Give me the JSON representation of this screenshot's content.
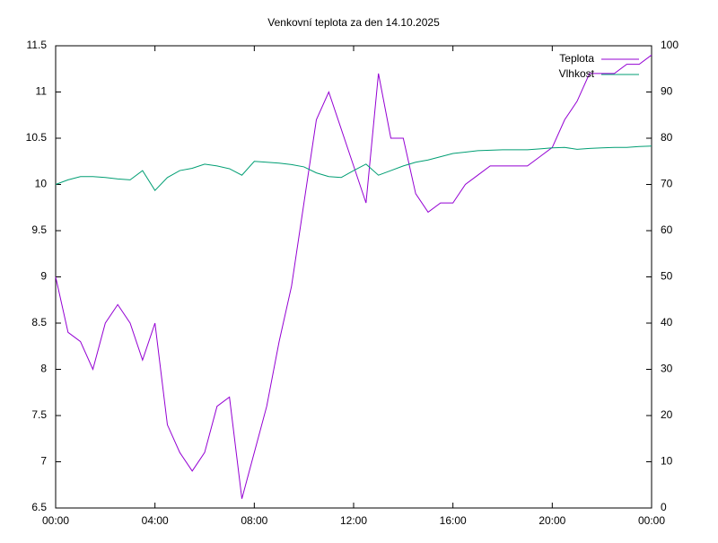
{
  "chart_data": {
    "type": "line",
    "title": "Venkovní teplota za den 14.10.2025",
    "x": [
      0,
      0.5,
      1,
      1.5,
      2,
      2.5,
      3,
      3.5,
      4,
      4.5,
      5,
      5.5,
      6,
      6.5,
      7,
      7.5,
      8,
      8.5,
      9,
      9.5,
      10,
      10.5,
      11,
      11.5,
      12,
      12.5,
      13,
      13.5,
      14,
      14.5,
      15,
      15.5,
      16,
      16.5,
      17,
      17.5,
      18,
      18.5,
      19,
      19.5,
      20,
      20.5,
      21,
      21.5,
      22,
      22.5,
      23,
      23.5,
      24
    ],
    "series": [
      {
        "name": "Teplota",
        "color": "#9400d3",
        "values": [
          9.0,
          8.4,
          8.3,
          8.0,
          8.5,
          8.7,
          8.5,
          8.1,
          8.5,
          7.4,
          7.1,
          6.9,
          7.1,
          7.6,
          7.7,
          6.6,
          7.1,
          7.6,
          8.3,
          8.9,
          9.8,
          10.7,
          11.0,
          10.6,
          10.2,
          9.8,
          11.2,
          10.5,
          10.5,
          9.9,
          9.7,
          9.8,
          9.8,
          10.0,
          10.1,
          10.2,
          10.2,
          10.2,
          10.2,
          10.3,
          10.4,
          10.7,
          10.9,
          11.2,
          11.2,
          11.2,
          11.3,
          11.3,
          11.4
        ]
      },
      {
        "name": "Vlhkost",
        "color": "#009e73",
        "axis": "y2",
        "values": [
          70,
          71,
          71.7,
          71.7,
          71.5,
          71.2,
          71,
          73,
          68.7,
          71.5,
          73,
          73.5,
          74.4,
          74,
          73.4,
          72,
          75,
          74.8,
          74.6,
          74.3,
          73.8,
          72.5,
          71.7,
          71.5,
          73,
          74.4,
          72,
          73,
          74,
          74.8,
          75.3,
          76,
          76.7,
          77,
          77.3,
          77.4,
          77.5,
          77.5,
          77.5,
          77.7,
          77.9,
          78,
          77.6,
          77.8,
          77.9,
          78,
          78,
          78.2,
          78.3
        ]
      }
    ],
    "xlim": [
      0,
      24
    ],
    "xticks": [
      {
        "value": 0,
        "label": "00:00"
      },
      {
        "value": 4,
        "label": "04:00"
      },
      {
        "value": 8,
        "label": "08:00"
      },
      {
        "value": 12,
        "label": "12:00"
      },
      {
        "value": 16,
        "label": "16:00"
      },
      {
        "value": 20,
        "label": "20:00"
      },
      {
        "value": 24,
        "label": "00:00"
      }
    ],
    "ylim": [
      6.5,
      11.5
    ],
    "yticks": [
      6.5,
      7,
      7.5,
      8,
      8.5,
      9,
      9.5,
      10,
      10.5,
      11,
      11.5
    ],
    "y2lim": [
      0,
      100
    ],
    "y2ticks": [
      0,
      10,
      20,
      30,
      40,
      50,
      60,
      70,
      80,
      90,
      100
    ],
    "grid": false,
    "legend": "top-right"
  }
}
